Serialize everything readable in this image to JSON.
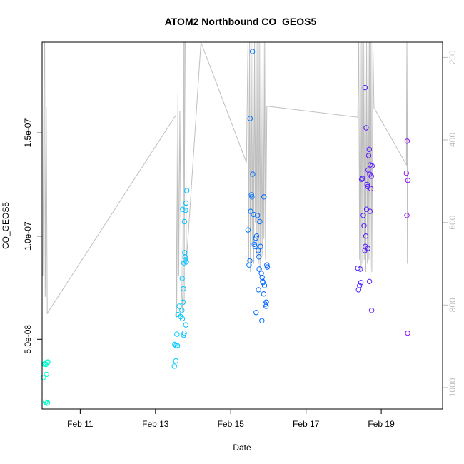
{
  "chart_data": {
    "type": "scatter",
    "title": "ATOM2 Northbound CO_GEOS5",
    "xlabel": "Date",
    "ylabel": "CO_GEOS5",
    "x_unit": "days",
    "x_axis": {
      "range": [
        "2016-02-09T23:42",
        "2016-02-20T15:06"
      ],
      "ticks": [
        {
          "value": "2016-02-11",
          "label": "Feb 11"
        },
        {
          "value": "2016-02-13",
          "label": "Feb 13"
        },
        {
          "value": "2016-02-15",
          "label": "Feb 15"
        },
        {
          "value": "2016-02-17",
          "label": "Feb 17"
        },
        {
          "value": "2016-02-19",
          "label": "Feb 19"
        }
      ]
    },
    "y_axis": {
      "range": [
        1.62e-08,
        1.94e-07
      ],
      "ticks": [
        {
          "value": 5e-08,
          "label": "5.0e-08"
        },
        {
          "value": 1e-07,
          "label": "1.0e-07"
        },
        {
          "value": 1.5e-07,
          "label": "1.5e-07"
        }
      ]
    },
    "y2_axis": {
      "range": [
        1052,
        163
      ],
      "reversed": true,
      "color": "#bfbfbf",
      "ticks": [
        {
          "value": 200,
          "label": "200"
        },
        {
          "value": 400,
          "label": "400"
        },
        {
          "value": 600,
          "label": "600"
        },
        {
          "value": 800,
          "label": "800"
        },
        {
          "value": 1000,
          "label": "1000"
        }
      ]
    },
    "grid": false,
    "legend": "none",
    "series": [
      {
        "kind": "points",
        "marker": "open-circle",
        "color_gradient": [
          "#00ffcc",
          "#00ccff",
          "#0033ff",
          "#cc00ff"
        ],
        "points": [
          [
            "2016-02-10T01:00",
            3.8e-08
          ],
          [
            "2016-02-10T01:40",
            3.82e-08
          ],
          [
            "2016-02-10T02:10",
            3.78e-08
          ],
          [
            "2016-02-10T02:50",
            3.85e-08
          ],
          [
            "2016-02-10T03:20",
            3.9e-08
          ],
          [
            "2016-02-10T00:30",
            3.15e-08
          ],
          [
            "2016-02-10T02:30",
            3.3e-08
          ],
          [
            "2016-02-10T01:50",
            1.95e-08
          ],
          [
            "2016-02-10T02:40",
            1.9e-08
          ],
          [
            "2016-02-10T03:10",
            1.92e-08
          ],
          [
            "2016-02-13T12:20",
            4.75e-08
          ],
          [
            "2016-02-13T13:10",
            4.7e-08
          ],
          [
            "2016-02-13T14:00",
            4.68e-08
          ],
          [
            "2016-02-13T13:40",
            5.25e-08
          ],
          [
            "2016-02-13T12:00",
            3.7e-08
          ],
          [
            "2016-02-13T13:00",
            3.95e-08
          ],
          [
            "2016-02-13T14:20",
            6.2e-08
          ],
          [
            "2016-02-13T15:10",
            6.6e-08
          ],
          [
            "2016-02-13T16:00",
            6.1e-08
          ],
          [
            "2016-02-13T16:50",
            6.4e-08
          ],
          [
            "2016-02-13T17:10",
            6e-08
          ],
          [
            "2016-02-13T17:40",
            6.8e-08
          ],
          [
            "2016-02-13T18:00",
            5.2e-08
          ],
          [
            "2016-02-13T18:20",
            5.3e-08
          ],
          [
            "2016-02-13T19:20",
            5.7e-08
          ],
          [
            "2016-02-13T17:00",
            7.95e-08
          ],
          [
            "2016-02-13T17:50",
            7.45e-08
          ],
          [
            "2016-02-13T18:10",
            8.7e-08
          ],
          [
            "2016-02-13T18:40",
            9.2e-08
          ],
          [
            "2016-02-13T19:00",
            8.85e-08
          ],
          [
            "2016-02-13T19:40",
            8.75e-08
          ],
          [
            "2016-02-13T18:30",
            1.07e-07
          ],
          [
            "2016-02-13T17:20",
            1.13e-07
          ],
          [
            "2016-02-13T19:10",
            1.125e-07
          ],
          [
            "2016-02-13T19:30",
            1.16e-07
          ],
          [
            "2016-02-13T20:00",
            1.22e-07
          ],
          [
            "2016-02-13T18:50",
            9e-08
          ],
          [
            "2016-02-15T11:00",
            1.03e-07
          ],
          [
            "2016-02-15T11:40",
            8.6e-08
          ],
          [
            "2016-02-15T12:10",
            8.8e-08
          ],
          [
            "2016-02-15T12:40",
            1.12e-07
          ],
          [
            "2016-02-15T13:10",
            1.2e-07
          ],
          [
            "2016-02-15T13:30",
            1.19e-07
          ],
          [
            "2016-02-15T14:00",
            1.3e-07
          ],
          [
            "2016-02-15T14:30",
            1.105e-07
          ],
          [
            "2016-02-15T15:00",
            9.6e-08
          ],
          [
            "2016-02-15T15:30",
            9.5e-08
          ],
          [
            "2016-02-15T16:00",
            9.9e-08
          ],
          [
            "2016-02-15T16:30",
            1e-07
          ],
          [
            "2016-02-15T17:00",
            1.1e-07
          ],
          [
            "2016-02-15T17:30",
            9.3e-08
          ],
          [
            "2016-02-15T18:00",
            9e-08
          ],
          [
            "2016-02-15T12:20",
            1.57e-07
          ],
          [
            "2016-02-15T13:50",
            1.895e-07
          ],
          [
            "2016-02-15T18:30",
            1.07e-07
          ],
          [
            "2016-02-15T19:00",
            9.5e-08
          ],
          [
            "2016-02-15T19:30",
            8.2e-08
          ],
          [
            "2016-02-15T20:00",
            8e-08
          ],
          [
            "2016-02-15T20:30",
            7.75e-08
          ],
          [
            "2016-02-15T21:00",
            7.2e-08
          ],
          [
            "2016-02-15T21:30",
            7.6e-08
          ],
          [
            "2016-02-15T22:00",
            6.7e-08
          ],
          [
            "2016-02-15T22:30",
            6.6e-08
          ],
          [
            "2016-02-15T23:00",
            8.6e-08
          ],
          [
            "2016-02-15T23:20",
            8.5e-08
          ],
          [
            "2016-02-15T16:10",
            6.3e-08
          ],
          [
            "2016-02-15T19:50",
            5.9e-08
          ],
          [
            "2016-02-15T17:40",
            7.4e-08
          ],
          [
            "2016-02-15T18:10",
            8.4e-08
          ],
          [
            "2016-02-15T20:20",
            7.8e-08
          ],
          [
            "2016-02-15T21:10",
            1.19e-07
          ],
          [
            "2016-02-15T22:40",
            6.8e-08
          ],
          [
            "2016-02-18T09:00",
            8.45e-08
          ],
          [
            "2016-02-18T09:30",
            7.4e-08
          ],
          [
            "2016-02-18T10:10",
            7.6e-08
          ],
          [
            "2016-02-18T10:40",
            8.4e-08
          ],
          [
            "2016-02-18T11:00",
            7.75e-08
          ],
          [
            "2016-02-18T11:30",
            1.275e-07
          ],
          [
            "2016-02-18T12:00",
            1.28e-07
          ],
          [
            "2016-02-18T12:30",
            1.1e-07
          ],
          [
            "2016-02-18T13:00",
            1.05e-07
          ],
          [
            "2016-02-18T13:30",
            9.3e-08
          ],
          [
            "2016-02-18T13:50",
            9.5e-08
          ],
          [
            "2016-02-18T14:10",
            1e-07
          ],
          [
            "2016-02-18T14:40",
            1.13e-07
          ],
          [
            "2016-02-18T15:00",
            1.25e-07
          ],
          [
            "2016-02-18T15:20",
            1.24e-07
          ],
          [
            "2016-02-18T15:40",
            1.32e-07
          ],
          [
            "2016-02-18T16:00",
            1.39e-07
          ],
          [
            "2016-02-18T16:20",
            1.42e-07
          ],
          [
            "2016-02-18T16:40",
            1.3e-07
          ],
          [
            "2016-02-18T17:00",
            1.345e-07
          ],
          [
            "2016-02-18T17:20",
            1.23e-07
          ],
          [
            "2016-02-18T17:40",
            1.29e-07
          ],
          [
            "2016-02-18T14:20",
            1.525e-07
          ],
          [
            "2016-02-18T13:40",
            1.72e-07
          ],
          [
            "2016-02-18T16:30",
            7.8e-08
          ],
          [
            "2016-02-18T17:50",
            6.4e-08
          ],
          [
            "2016-02-18T18:10",
            1.34e-07
          ],
          [
            "2016-02-18T15:30",
            9.4e-08
          ],
          [
            "2016-02-18T16:50",
            1.12e-07
          ],
          [
            "2016-02-19T16:00",
            1.305e-07
          ],
          [
            "2016-02-19T16:30",
            1.46e-07
          ],
          [
            "2016-02-19T17:00",
            1.27e-07
          ],
          [
            "2016-02-19T16:20",
            1.1e-07
          ],
          [
            "2016-02-19T16:50",
            5.3e-08
          ]
        ]
      },
      {
        "kind": "line",
        "axis": "y2",
        "color": "#bfbfbf",
        "points": [
          [
            "2016-02-10T00:10",
            730
          ],
          [
            "2016-02-10T01:00",
            163
          ],
          [
            "2016-02-10T01:20",
            163
          ],
          [
            "2016-02-10T01:40",
            780
          ],
          [
            "2016-02-10T02:20",
            320
          ],
          [
            "2016-02-10T03:00",
            820
          ],
          [
            "2016-02-13T13:00",
            340
          ],
          [
            "2016-02-13T13:30",
            830
          ],
          [
            "2016-02-13T14:20",
            290
          ],
          [
            "2016-02-13T14:50",
            730
          ],
          [
            "2016-02-13T15:30",
            330
          ],
          [
            "2016-02-13T16:30",
            760
          ],
          [
            "2016-02-13T17:20",
            820
          ],
          [
            "2016-02-13T18:00",
            163
          ],
          [
            "2016-02-13T18:20",
            800
          ],
          [
            "2016-02-13T18:40",
            163
          ],
          [
            "2016-02-13T19:10",
            163
          ],
          [
            "2016-02-13T19:40",
            700
          ],
          [
            "2016-02-14T05:00",
            163
          ],
          [
            "2016-02-15T10:00",
            455
          ],
          [
            "2016-02-15T11:00",
            163
          ],
          [
            "2016-02-15T11:30",
            700
          ],
          [
            "2016-02-15T12:00",
            163
          ],
          [
            "2016-02-15T12:30",
            720
          ],
          [
            "2016-02-15T13:00",
            163
          ],
          [
            "2016-02-15T13:40",
            650
          ],
          [
            "2016-02-15T14:10",
            163
          ],
          [
            "2016-02-15T14:40",
            700
          ],
          [
            "2016-02-15T15:10",
            163
          ],
          [
            "2016-02-15T15:40",
            600
          ],
          [
            "2016-02-15T16:10",
            163
          ],
          [
            "2016-02-15T16:40",
            680
          ],
          [
            "2016-02-15T17:10",
            163
          ],
          [
            "2016-02-15T17:40",
            700
          ],
          [
            "2016-02-15T18:10",
            163
          ],
          [
            "2016-02-15T18:40",
            720
          ],
          [
            "2016-02-15T19:10",
            163
          ],
          [
            "2016-02-15T20:00",
            680
          ],
          [
            "2016-02-15T20:40",
            163
          ],
          [
            "2016-02-15T21:10",
            640
          ],
          [
            "2016-02-15T21:40",
            163
          ],
          [
            "2016-02-15T22:10",
            690
          ],
          [
            "2016-02-15T23:00",
            318
          ],
          [
            "2016-02-18T09:00",
            345
          ],
          [
            "2016-02-18T09:40",
            163
          ],
          [
            "2016-02-18T10:10",
            690
          ],
          [
            "2016-02-18T10:40",
            163
          ],
          [
            "2016-02-18T11:10",
            720
          ],
          [
            "2016-02-18T11:40",
            163
          ],
          [
            "2016-02-18T12:10",
            700
          ],
          [
            "2016-02-18T12:40",
            163
          ],
          [
            "2016-02-18T13:10",
            690
          ],
          [
            "2016-02-18T13:40",
            163
          ],
          [
            "2016-02-18T14:10",
            720
          ],
          [
            "2016-02-18T14:40",
            163
          ],
          [
            "2016-02-18T15:10",
            700
          ],
          [
            "2016-02-18T15:40",
            163
          ],
          [
            "2016-02-18T16:10",
            690
          ],
          [
            "2016-02-18T16:30",
            163
          ],
          [
            "2016-02-18T17:00",
            710
          ],
          [
            "2016-02-18T17:30",
            163
          ],
          [
            "2016-02-18T18:00",
            720
          ],
          [
            "2016-02-18T18:40",
            165
          ],
          [
            "2016-02-18T19:20",
            322
          ],
          [
            "2016-02-19T16:00",
            460
          ],
          [
            "2016-02-19T16:20",
            163
          ],
          [
            "2016-02-19T16:40",
            700
          ],
          [
            "2016-02-19T17:00",
            163
          ]
        ]
      }
    ]
  }
}
